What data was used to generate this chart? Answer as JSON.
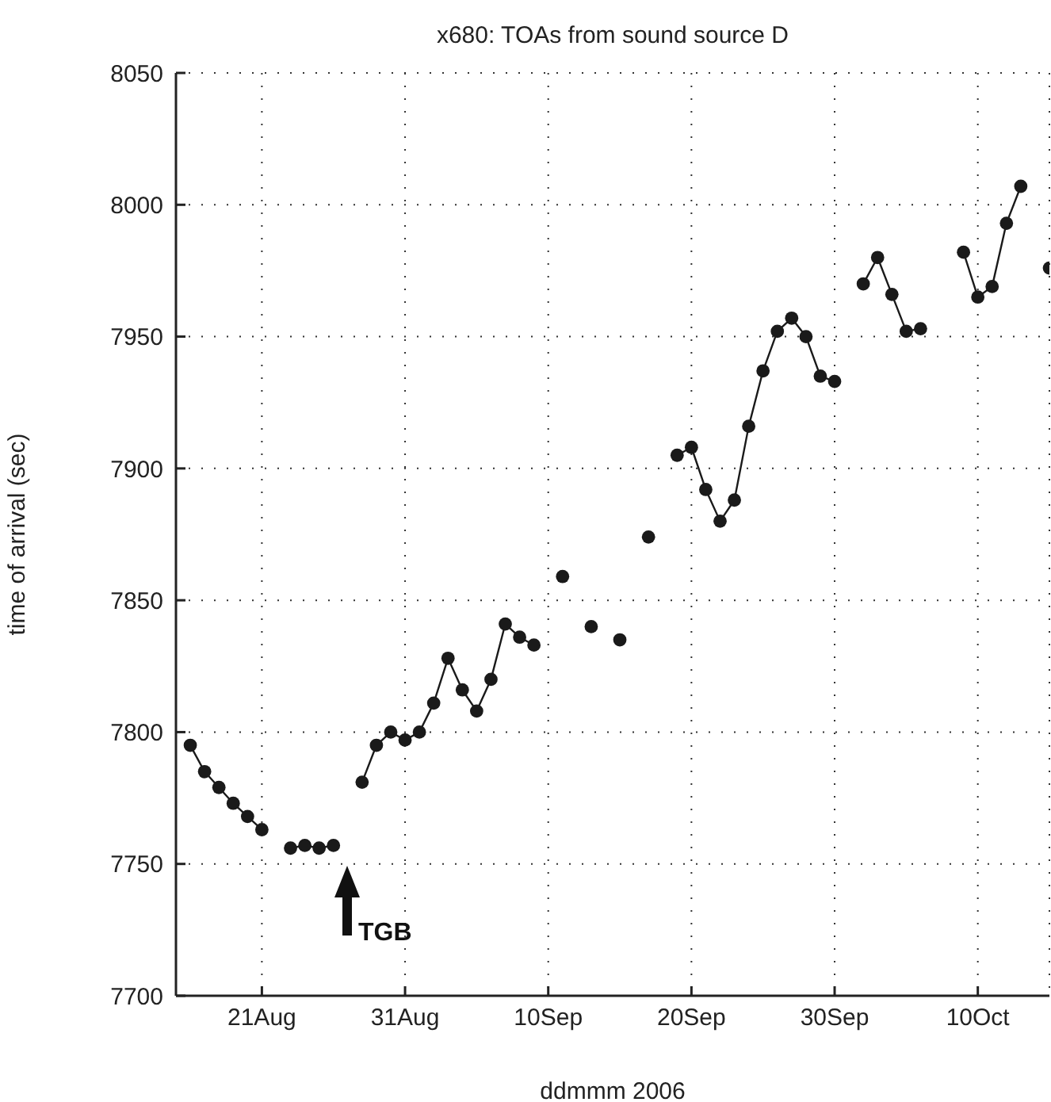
{
  "chart_data": {
    "type": "line",
    "title": "x680: TOAs from sound source D",
    "xlabel": "ddmmm 2006",
    "ylabel": "time of arrival (sec)",
    "x": [
      "2006-08-16",
      "2006-08-17",
      "2006-08-18",
      "2006-08-19",
      "2006-08-20",
      "2006-08-21",
      "2006-08-22",
      "2006-08-23",
      "2006-08-24",
      "2006-08-25",
      "2006-08-26",
      "2006-08-27",
      "2006-08-28",
      "2006-08-29",
      "2006-08-30",
      "2006-08-31",
      "2006-09-01",
      "2006-09-02",
      "2006-09-03",
      "2006-09-04",
      "2006-09-05",
      "2006-09-06",
      "2006-09-07",
      "2006-09-08",
      "2006-09-09",
      "2006-09-10",
      "2006-09-11",
      "2006-09-12",
      "2006-09-13",
      "2006-09-14",
      "2006-09-15",
      "2006-09-16",
      "2006-09-17",
      "2006-09-18",
      "2006-09-19",
      "2006-09-20",
      "2006-09-21",
      "2006-09-22",
      "2006-09-23",
      "2006-09-24",
      "2006-09-25",
      "2006-09-26",
      "2006-09-27",
      "2006-09-28",
      "2006-09-29",
      "2006-09-30",
      "2006-10-01",
      "2006-10-02",
      "2006-10-03",
      "2006-10-04",
      "2006-10-05",
      "2006-10-06",
      "2006-10-07",
      "2006-10-08",
      "2006-10-09",
      "2006-10-10",
      "2006-10-11",
      "2006-10-12",
      "2006-10-13",
      "2006-10-14",
      "2006-10-15"
    ],
    "series": [
      {
        "color": "#1a1a1a",
        "values": [
          7795,
          7785,
          7779,
          7773,
          7768,
          7763,
          null,
          7756,
          7757,
          7756,
          7757,
          null,
          7781,
          7795,
          7800,
          7797,
          7800,
          7811,
          7828,
          7816,
          7808,
          7820,
          7841,
          7836,
          7833,
          null,
          7859,
          null,
          7840,
          null,
          7835,
          null,
          7874,
          null,
          7905,
          7908,
          7892,
          7880,
          7888,
          7916,
          7937,
          7952,
          7957,
          7950,
          7935,
          7933,
          null,
          7970,
          7980,
          7966,
          7952,
          7953,
          null,
          null,
          7982,
          7965,
          7969,
          7993,
          8007,
          null,
          7976
        ]
      }
    ],
    "xlim": [
      "2006-08-15",
      "2006-10-15"
    ],
    "xticks": [
      {
        "value": "2006-08-21",
        "label": "21Aug"
      },
      {
        "value": "2006-08-31",
        "label": "31Aug"
      },
      {
        "value": "2006-09-10",
        "label": "10Sep"
      },
      {
        "value": "2006-09-20",
        "label": "20Sep"
      },
      {
        "value": "2006-09-30",
        "label": "30Sep"
      },
      {
        "value": "2006-10-10",
        "label": "10Oct"
      }
    ],
    "ylim": [
      7700,
      8050
    ],
    "yticks": [
      7700,
      7750,
      7800,
      7850,
      7900,
      7950,
      8000,
      8050
    ],
    "grid": true,
    "marker": "circle",
    "line_style": "solid",
    "legend": false,
    "annotations": [
      "TGB"
    ]
  }
}
